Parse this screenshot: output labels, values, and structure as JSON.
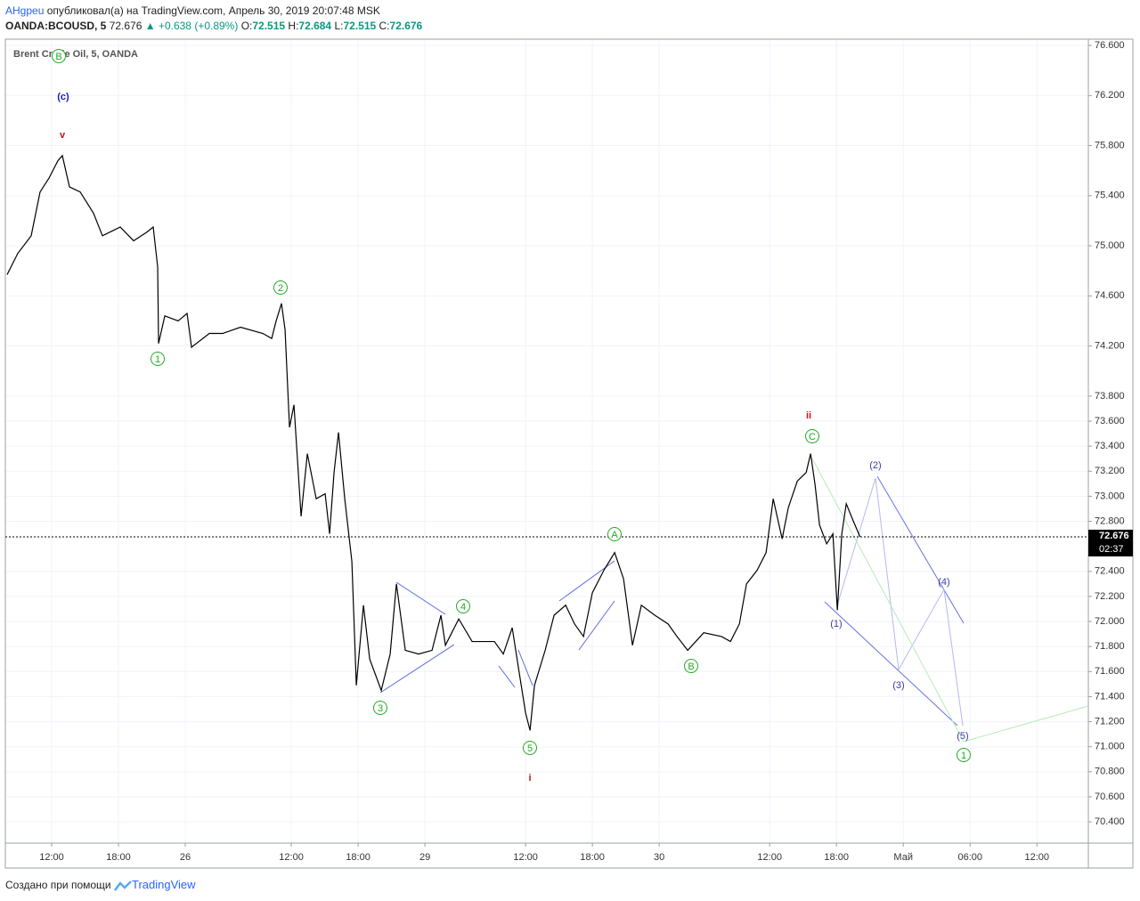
{
  "header": {
    "author": "AHgpeu",
    "published": "опубликовал(а) на TradingView.com, Апрель 30, 2019 20:07:48 MSK",
    "symbol": "OANDA:BCOUSD, 5",
    "last": "72.676",
    "change": "▲ +0.638 (+0.89%)",
    "o_label": "O:",
    "open": "72.515",
    "h_label": "H:",
    "high": "72.684",
    "l_label": "L:",
    "low": "72.515",
    "c_label": "C:",
    "close": "72.676"
  },
  "chart_data": {
    "type": "line",
    "x": [
      8.0,
      8.96,
      10.16,
      10.96,
      11.76,
      12.56,
      12.96,
      13.6,
      14.56,
      15.76,
      16.56,
      18.16,
      19.36,
      20.56,
      21.12,
      21.52,
      21.6,
      22.16,
      23.36,
      24.16,
      24.56,
      26.16,
      27.36,
      28.96,
      30.96,
      31.76,
      32.16,
      32.64,
      32.96,
      33.36,
      33.76,
      34.4,
      34.96,
      35.76,
      36.56,
      36.96,
      37.36,
      37.76,
      38.32,
      38.96,
      39.36,
      40.0,
      40.56,
      41.6,
      42.4,
      42.96,
      43.76,
      44.96,
      46.16,
      46.96,
      47.36,
      48.56,
      49.76,
      51.76,
      52.56,
      53.36,
      53.92,
      54.56,
      54.96,
      55.36,
      56.32,
      57.12,
      58.16,
      58.96,
      59.76,
      60.56,
      61.6,
      62.56,
      63.36,
      64.16,
      64.96,
      66.16,
      67.36,
      68.16,
      69.12,
      70.56,
      72.16,
      72.96,
      73.76,
      74.4,
      75.36,
      76.16,
      76.8,
      77.6,
      78.16,
      78.96,
      79.76,
      80.16,
      80.56,
      80.96,
      81.6,
      82.16,
      82.56,
      82.96,
      83.36,
      84.0,
      84.6
    ],
    "series": [
      {
        "name": "Brent Crude Oil, 5, OANDA",
        "color": "#000000",
        "values": [
          74.77,
          74.94,
          75.08,
          75.43,
          75.54,
          75.68,
          75.72,
          75.47,
          75.43,
          75.26,
          75.08,
          75.15,
          75.04,
          75.11,
          75.15,
          74.83,
          74.22,
          74.44,
          74.4,
          74.46,
          74.19,
          74.3,
          74.3,
          74.35,
          74.3,
          74.26,
          74.4,
          74.54,
          74.33,
          73.55,
          73.73,
          72.84,
          73.34,
          72.98,
          73.02,
          72.7,
          73.19,
          73.51,
          72.98,
          72.48,
          71.49,
          72.13,
          71.7,
          71.45,
          71.74,
          72.3,
          71.77,
          71.74,
          71.77,
          72.05,
          71.81,
          72.02,
          71.84,
          71.84,
          71.74,
          71.95,
          71.63,
          71.27,
          71.13,
          71.49,
          71.77,
          72.05,
          72.13,
          71.98,
          71.88,
          72.23,
          72.41,
          72.55,
          72.34,
          71.81,
          72.13,
          72.05,
          71.98,
          71.88,
          71.77,
          71.91,
          71.88,
          71.84,
          71.98,
          72.3,
          72.41,
          72.55,
          72.98,
          72.66,
          72.91,
          73.12,
          73.19,
          73.34,
          73.09,
          72.77,
          72.62,
          72.7,
          72.09,
          72.7,
          72.94,
          72.8,
          72.676
        ]
      }
    ],
    "last_price": 72.676,
    "countdown": "02:37",
    "xlim": [
      7.84,
      105.1
    ],
    "ylim": [
      70.23,
      76.65
    ],
    "xticks": [
      {
        "value": 12,
        "label": "12:00"
      },
      {
        "value": 18,
        "label": "18:00"
      },
      {
        "value": 24,
        "label": "26"
      },
      {
        "value": 33.52,
        "label": "12:00"
      },
      {
        "value": 39.52,
        "label": "18:00"
      },
      {
        "value": 45.52,
        "label": "29"
      },
      {
        "value": 54.56,
        "label": "12:00"
      },
      {
        "value": 60.56,
        "label": "18:00"
      },
      {
        "value": 66.56,
        "label": "30"
      },
      {
        "value": 76.48,
        "label": "12:00"
      },
      {
        "value": 82.48,
        "label": "18:00"
      },
      {
        "value": 88.48,
        "label": "Май"
      },
      {
        "value": 94.48,
        "label": "06:00"
      },
      {
        "value": 100.48,
        "label": "12:00"
      }
    ],
    "yticks": [
      {
        "value": 76.6,
        "label": "76.600"
      },
      {
        "value": 76.2,
        "label": "76.200"
      },
      {
        "value": 75.8,
        "label": "75.800"
      },
      {
        "value": 75.4,
        "label": "75.400"
      },
      {
        "value": 75.0,
        "label": "75.000"
      },
      {
        "value": 74.6,
        "label": "74.600"
      },
      {
        "value": 74.2,
        "label": "74.200"
      },
      {
        "value": 73.8,
        "label": "73.800"
      },
      {
        "value": 73.6,
        "label": "73.600"
      },
      {
        "value": 73.4,
        "label": "73.400"
      },
      {
        "value": 73.2,
        "label": "73.200"
      },
      {
        "value": 73.0,
        "label": "73.000"
      },
      {
        "value": 72.8,
        "label": "72.800"
      },
      {
        "value": 72.4,
        "label": "72.400"
      },
      {
        "value": 72.2,
        "label": "72.200"
      },
      {
        "value": 72.0,
        "label": "72.000"
      },
      {
        "value": 71.8,
        "label": "71.800"
      },
      {
        "value": 71.6,
        "label": "71.600"
      },
      {
        "value": 71.4,
        "label": "71.400"
      },
      {
        "value": 71.2,
        "label": "71.200"
      },
      {
        "value": 71.0,
        "label": "71.000"
      },
      {
        "value": 70.8,
        "label": "70.800"
      },
      {
        "value": 70.6,
        "label": "70.600"
      },
      {
        "value": 70.4,
        "label": "70.400"
      }
    ],
    "grid": true,
    "annotations": [
      "B",
      "(c)",
      "v",
      "1",
      "2",
      "3",
      "4",
      "5",
      "i",
      "A",
      "B",
      "ii",
      "C",
      "(1)",
      "(2)",
      "(3)",
      "(4)",
      "(5)",
      "1"
    ]
  },
  "footer": {
    "made_with": "Создано при помощи",
    "brand": "TradingView"
  }
}
